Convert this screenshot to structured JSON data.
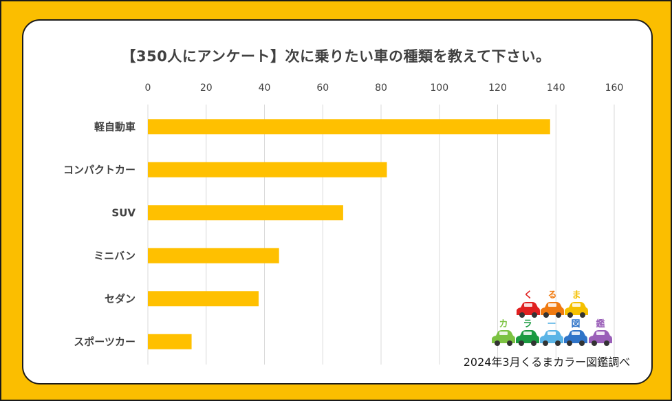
{
  "chart_data": {
    "type": "bar",
    "orientation": "horizontal",
    "title": "【350人にアンケート】次に乗りたい車の種類を教えて下さい。",
    "categories": [
      "軽自動車",
      "コンパクトカー",
      "SUV",
      "ミニバン",
      "セダン",
      "スポーツカー"
    ],
    "values": [
      138,
      82,
      67,
      45,
      38,
      15
    ],
    "xlim": [
      0,
      160
    ],
    "xticks": [
      0,
      20,
      40,
      60,
      80,
      100,
      120,
      140,
      160
    ],
    "xaxis_position": "top",
    "grid": true,
    "bar_color": "#ffc000",
    "xlabel": "",
    "ylabel": ""
  },
  "logo": {
    "top_chars": [
      "く",
      "る",
      "ま"
    ],
    "bottom_chars": [
      "カ",
      "ラ",
      "ー",
      "図",
      "鑑"
    ],
    "car_colors_top": [
      "#e02020",
      "#f07a10",
      "#f5c000"
    ],
    "car_colors_bottom": [
      "#7cc242",
      "#1a9a40",
      "#5ab4e6",
      "#2f74c8",
      "#9a5fb8"
    ]
  },
  "credit": "2024年3月くるまカラー図鑑調べ"
}
